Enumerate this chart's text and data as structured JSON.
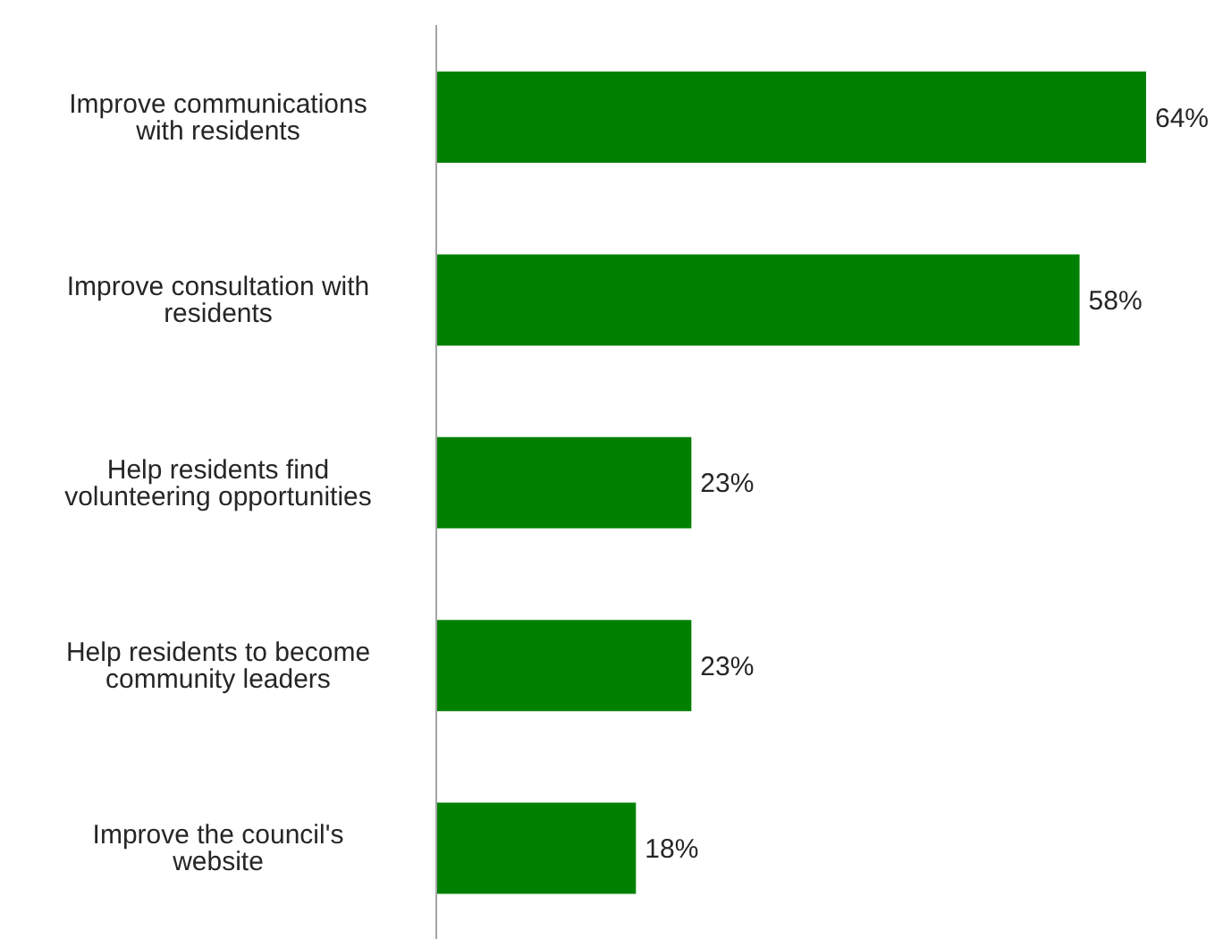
{
  "chart_data": {
    "type": "bar",
    "orientation": "horizontal",
    "categories": [
      "Improve communications with residents",
      "Improve consultation with residents",
      "Help residents find volunteering opportunities",
      "Help residents to become community leaders",
      "Improve the council's website"
    ],
    "values": [
      64,
      58,
      23,
      23,
      18
    ],
    "value_labels": [
      "64%",
      "58%",
      "23%",
      "23%",
      "18%"
    ],
    "color": "#008000",
    "grid": false,
    "legend": false
  }
}
